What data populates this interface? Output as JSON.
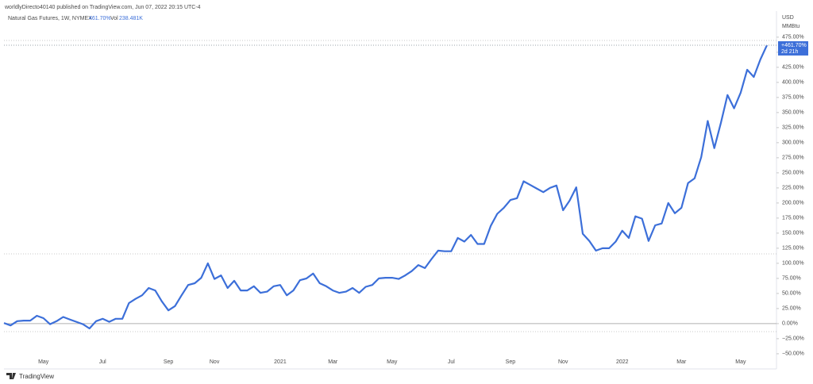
{
  "header": {
    "publisher": "worldlyDirecto40140 published on TradingView.com, Jun 07, 2022 20:15 UTC-4"
  },
  "chart_data": {
    "type": "line",
    "title": "Natural Gas Futures, 1W, NYMEX",
    "legend_value": "461.70%",
    "volume_label": "Vol",
    "volume": "238.481K",
    "currency": "USD",
    "unit": "MMBtu",
    "last_label": "+461.70%",
    "countdown": "2d 21h",
    "color": "#3c6fd9",
    "categories": [
      null,
      null,
      null,
      null,
      null,
      null,
      "May",
      null,
      null,
      null,
      null,
      null,
      null,
      null,
      null,
      "Jul",
      null,
      null,
      null,
      null,
      null,
      null,
      null,
      null,
      null,
      "Sep",
      null,
      null,
      null,
      null,
      null,
      null,
      "Nov",
      null,
      null,
      null,
      null,
      null,
      null,
      null,
      null,
      null,
      "2021",
      null,
      null,
      null,
      null,
      null,
      null,
      null,
      "Mar",
      null,
      null,
      null,
      null,
      null,
      null,
      null,
      null,
      "May",
      null,
      null,
      null,
      null,
      null,
      null,
      null,
      null,
      "Jul",
      null,
      null,
      null,
      null,
      null,
      null,
      null,
      null,
      "Sep",
      null,
      null,
      null,
      null,
      null,
      null,
      null,
      "Nov",
      null,
      null,
      null,
      null,
      null,
      null,
      null,
      null,
      "2022",
      null,
      null,
      null,
      null,
      null,
      null,
      null,
      null,
      "Mar",
      null,
      null,
      null,
      null,
      null,
      null,
      null,
      null,
      "May",
      null,
      null,
      null,
      null
    ],
    "values": [
      1,
      -3,
      4,
      5,
      5,
      13,
      9,
      -1,
      4,
      11,
      7,
      3,
      -1,
      -8,
      4,
      8,
      3,
      8,
      8,
      34,
      41,
      47,
      59,
      55,
      37,
      22,
      29,
      47,
      64,
      67,
      76,
      100,
      74,
      80,
      59,
      71,
      55,
      55,
      62,
      51,
      53,
      62,
      64,
      47,
      55,
      72,
      75,
      83,
      67,
      62,
      55,
      51,
      53,
      59,
      51,
      61,
      64,
      75,
      76,
      76,
      74,
      80,
      87,
      97,
      92,
      107,
      121,
      120,
      120,
      142,
      136,
      147,
      132,
      132,
      162,
      182,
      192,
      205,
      208,
      236,
      230,
      224,
      218,
      225,
      229,
      188,
      204,
      226,
      149,
      137,
      121,
      125,
      125,
      136,
      154,
      142,
      178,
      174,
      137,
      163,
      166,
      200,
      183,
      192,
      233,
      241,
      276,
      336,
      291,
      333,
      379,
      357,
      383,
      421,
      409,
      438,
      461.7
    ],
    "ylim": [
      -62,
      484
    ],
    "yticks": [
      {
        "value": 475,
        "label": "475.00%"
      },
      {
        "value": 450,
        "label": "450.00%"
      },
      {
        "value": 425,
        "label": "425.00%"
      },
      {
        "value": 400,
        "label": "400.00%"
      },
      {
        "value": 375,
        "label": "375.00%"
      },
      {
        "value": 350,
        "label": "350.00%"
      },
      {
        "value": 325,
        "label": "325.00%"
      },
      {
        "value": 300,
        "label": "300.00%"
      },
      {
        "value": 275,
        "label": "275.00%"
      },
      {
        "value": 250,
        "label": "250.00%"
      },
      {
        "value": 225,
        "label": "225.00%"
      },
      {
        "value": 200,
        "label": "200.00%"
      },
      {
        "value": 175,
        "label": "175.00%"
      },
      {
        "value": 150,
        "label": "150.00%"
      },
      {
        "value": 125,
        "label": "125.00%"
      },
      {
        "value": 100,
        "label": "100.00%"
      },
      {
        "value": 75,
        "label": "75.00%"
      },
      {
        "value": 50,
        "label": "50.00%"
      },
      {
        "value": 25,
        "label": "25.00%"
      },
      {
        "value": 0,
        "label": "0.00%"
      },
      {
        "value": -25,
        "label": "−25.00%"
      },
      {
        "value": -50,
        "label": "−50.00%"
      }
    ]
  },
  "footer": {
    "brand": "TradingView"
  }
}
